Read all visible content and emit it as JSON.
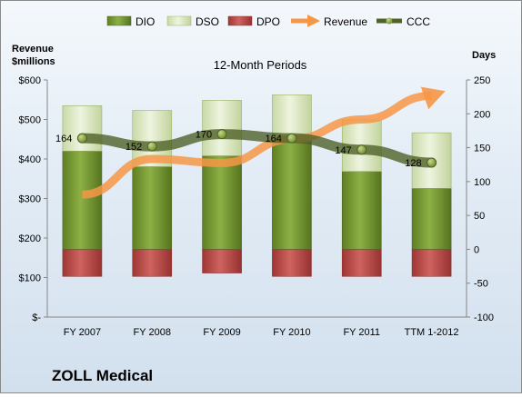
{
  "chart_data": {
    "type": "bar",
    "title": "12-Month Periods",
    "footer_title": "ZOLL Medical",
    "left_axis_label": [
      "Revenue",
      "$millions"
    ],
    "right_axis_label": "Days",
    "categories": [
      "FY 2007",
      "FY 2008",
      "FY 2009",
      "FY 2010",
      "FY 2011",
      "TTM 1-2012"
    ],
    "left_axis": {
      "min": 0,
      "max": 600,
      "step": 100,
      "tick_labels": [
        "$-",
        "$100",
        "$200",
        "$300",
        "$400",
        "$500",
        "$600"
      ]
    },
    "right_axis": {
      "min": -100,
      "max": 250,
      "step": 50,
      "tick_labels": [
        "-100",
        "-50",
        "0",
        "50",
        "100",
        "150",
        "200",
        "250"
      ]
    },
    "series": [
      {
        "name": "DIO",
        "type": "stacked-bar",
        "axis": "right",
        "color": "#7ea33a",
        "values": [
          145,
          122,
          138,
          160,
          115,
          90
        ]
      },
      {
        "name": "DSO",
        "type": "stacked-bar",
        "axis": "right",
        "color": "#d7e4bd",
        "values": [
          67,
          83,
          82,
          68,
          76,
          82
        ]
      },
      {
        "name": "DPO",
        "type": "stacked-bar",
        "axis": "right",
        "color": "#c0504d",
        "values": [
          -40,
          -40,
          -35,
          -40,
          -40,
          -40
        ]
      },
      {
        "name": "Revenue",
        "type": "arrow-line",
        "axis": "left",
        "color": "#f79646",
        "values": [
          310,
          400,
          390,
          450,
          500,
          560
        ]
      },
      {
        "name": "CCC",
        "type": "line",
        "axis": "right",
        "color": "#4f6228",
        "values": [
          164,
          152,
          170,
          164,
          147,
          128
        ],
        "data_labels": [
          "164",
          "152",
          "170",
          "164",
          "147",
          "128"
        ]
      }
    ],
    "legend_position": "top",
    "grid": false
  }
}
